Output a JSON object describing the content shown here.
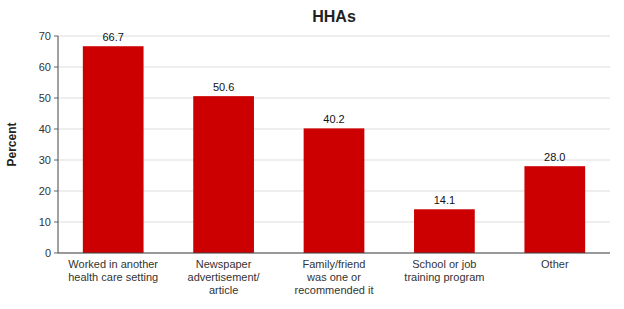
{
  "chart_data": {
    "type": "bar",
    "title": "HHAs",
    "categories": [
      "Worked in another\nhealth care setting",
      "Newspaper\nadvertisement/\narticle",
      "Family/friend\nwas one or\nrecommended it",
      "School or job\ntraining program",
      "Other"
    ],
    "values": [
      66.7,
      50.6,
      40.2,
      14.1,
      28.0
    ],
    "value_labels": [
      "66.7",
      "50.6",
      "40.2",
      "14.1",
      "28.0"
    ],
    "color": "#cc0000",
    "ylabel": "Percent",
    "ylim": [
      0,
      70
    ],
    "yticks": [
      0,
      10,
      20,
      30,
      40,
      50,
      60,
      70
    ],
    "grid": true,
    "data_labels": true
  }
}
